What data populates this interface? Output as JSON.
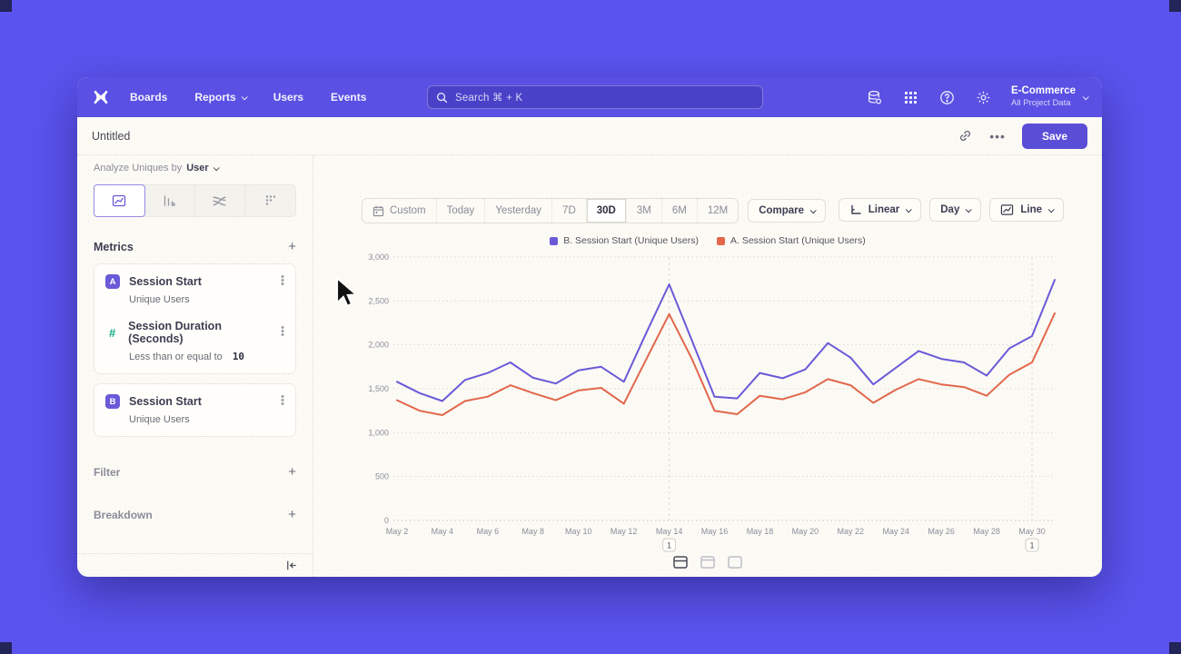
{
  "nav": {
    "links": [
      "Boards",
      "Reports",
      "Users",
      "Events"
    ],
    "search_placeholder": "Search   ⌘ + K",
    "project_name": "E-Commerce",
    "project_subtitle": "All Project Data"
  },
  "titlebar": {
    "title": "Untitled",
    "more": "•••",
    "save_label": "Save"
  },
  "sidebar": {
    "analyze_label": "Analyze Uniques by",
    "analyze_value": "User",
    "metrics_header": "Metrics",
    "add_symbol": "+",
    "metric_a": {
      "badge": "A",
      "name": "Session Start",
      "subtitle": "Unique Users"
    },
    "metric_duration": {
      "icon": "#",
      "name": "Session Duration (Seconds)",
      "condition": "Less than or equal to",
      "value": "10"
    },
    "metric_b": {
      "badge": "B",
      "name": "Session Start",
      "subtitle": "Unique Users"
    },
    "filter_header": "Filter",
    "breakdown_header": "Breakdown"
  },
  "toolbar": {
    "ranges": [
      "Custom",
      "Today",
      "Yesterday",
      "7D",
      "30D",
      "3M",
      "6M",
      "12M"
    ],
    "selected_range": "30D",
    "compare_label": "Compare",
    "scale_label": "Linear",
    "interval_label": "Day",
    "charttype_label": "Line"
  },
  "chart_data": {
    "type": "line",
    "x": [
      "May 2",
      "May 3",
      "May 4",
      "May 5",
      "May 6",
      "May 7",
      "May 8",
      "May 9",
      "May 10",
      "May 11",
      "May 12",
      "May 13",
      "May 14",
      "May 15",
      "May 16",
      "May 17",
      "May 18",
      "May 19",
      "May 20",
      "May 21",
      "May 22",
      "May 23",
      "May 24",
      "May 25",
      "May 26",
      "May 27",
      "May 28",
      "May 29",
      "May 30",
      "May 31"
    ],
    "x_tick_labels": [
      "May 2",
      "May 4",
      "May 6",
      "May 8",
      "May 10",
      "May 12",
      "May 14",
      "May 16",
      "May 18",
      "May 20",
      "May 22",
      "May 24",
      "May 26",
      "May 28",
      "May 30"
    ],
    "ylim": [
      0,
      3000
    ],
    "yticks": [
      0,
      500,
      1000,
      1500,
      2000,
      2500,
      3000
    ],
    "grid": "horizontal-dotted",
    "legend_position": "top-center",
    "series": [
      {
        "name": "B. Session Start (Unique Users)",
        "color": "#6a5ad8",
        "values": [
          1580,
          1450,
          1360,
          1600,
          1680,
          1800,
          1625,
          1560,
          1710,
          1750,
          1580,
          2140,
          2690,
          2050,
          1410,
          1390,
          1680,
          1620,
          1720,
          2020,
          1855,
          1550,
          1740,
          1930,
          1840,
          1800,
          1650,
          1960,
          2100,
          2740
        ]
      },
      {
        "name": "A. Session Start (Unique Users)",
        "color": "#e2674b",
        "values": [
          1370,
          1250,
          1200,
          1360,
          1410,
          1540,
          1450,
          1370,
          1480,
          1510,
          1330,
          1840,
          2350,
          1840,
          1250,
          1210,
          1420,
          1380,
          1460,
          1610,
          1540,
          1340,
          1490,
          1610,
          1550,
          1520,
          1420,
          1660,
          1800,
          2360
        ]
      }
    ],
    "annotations": [
      {
        "x": "May 14",
        "label": "1"
      },
      {
        "x": "May 30",
        "label": "1"
      }
    ]
  }
}
